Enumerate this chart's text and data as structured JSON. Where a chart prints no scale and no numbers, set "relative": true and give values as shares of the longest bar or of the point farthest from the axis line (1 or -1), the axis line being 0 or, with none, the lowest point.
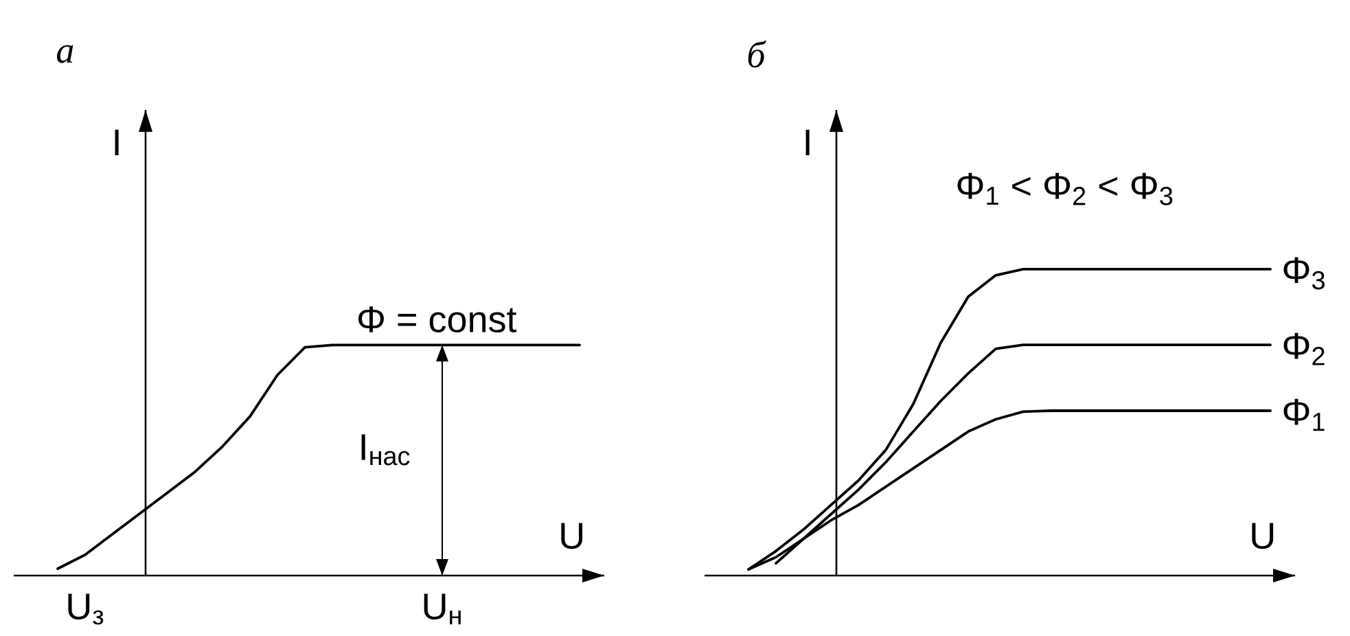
{
  "chart_data": [
    {
      "type": "line",
      "title": "а",
      "xlabel": "U",
      "ylabel": "I",
      "relative": true,
      "categories": [
        null,
        null,
        "U$_{з}$",
        null,
        null,
        null,
        null,
        null,
        null,
        null,
        null,
        null,
        null,
        null,
        null,
        "U$_{н}$",
        null,
        null,
        null,
        null,
        null
      ],
      "annotations": [
        "Φ = const",
        "I$_{нас}$"
      ],
      "series": [
        {
          "color": "#000000",
          "values": [
            null,
            0.03,
            0.09,
            0.18,
            0.27,
            0.36,
            0.45,
            0.56,
            0.69,
            0.87,
            0.99,
            1,
            1,
            1,
            1,
            1,
            1,
            1,
            1,
            1,
            1
          ]
        }
      ]
    },
    {
      "type": "line",
      "title": "б",
      "xlabel": "U",
      "ylabel": "I",
      "relative": true,
      "categories": [
        null,
        null,
        null,
        null,
        null,
        null,
        null,
        null,
        null,
        null,
        null,
        null,
        null,
        null,
        null,
        null,
        null,
        null,
        null,
        null,
        null
      ],
      "annotations": [
        "Φ$_{1}$ < Φ$_{2}$ < Φ$_{3}$"
      ],
      "series": [
        {
          "name": "Φ$_{3}$",
          "color": "#000000",
          "values": [
            null,
            0.02,
            0.08,
            0.15,
            0.23,
            0.31,
            0.41,
            0.56,
            0.76,
            0.91,
            0.98,
            1,
            1,
            1,
            1,
            1,
            1,
            1,
            1,
            1,
            1
          ]
        },
        {
          "name": "Φ$_{2}$",
          "color": "#000000",
          "values": [
            null,
            null,
            0.04,
            0.12,
            0.2,
            0.28,
            0.37,
            0.47,
            0.57,
            0.66,
            0.74,
            0.753,
            0.753,
            0.753,
            0.753,
            0.753,
            0.753,
            0.753,
            0.753,
            0.753,
            0.753
          ]
        },
        {
          "name": "Φ$_{1}$",
          "color": "#000000",
          "values": [
            null,
            0.02,
            0.06,
            0.12,
            0.18,
            0.23,
            0.29,
            0.35,
            0.41,
            0.47,
            0.51,
            0.535,
            0.538,
            0.538,
            0.538,
            0.538,
            0.538,
            0.538,
            0.538,
            0.538,
            0.538
          ]
        }
      ]
    }
  ]
}
